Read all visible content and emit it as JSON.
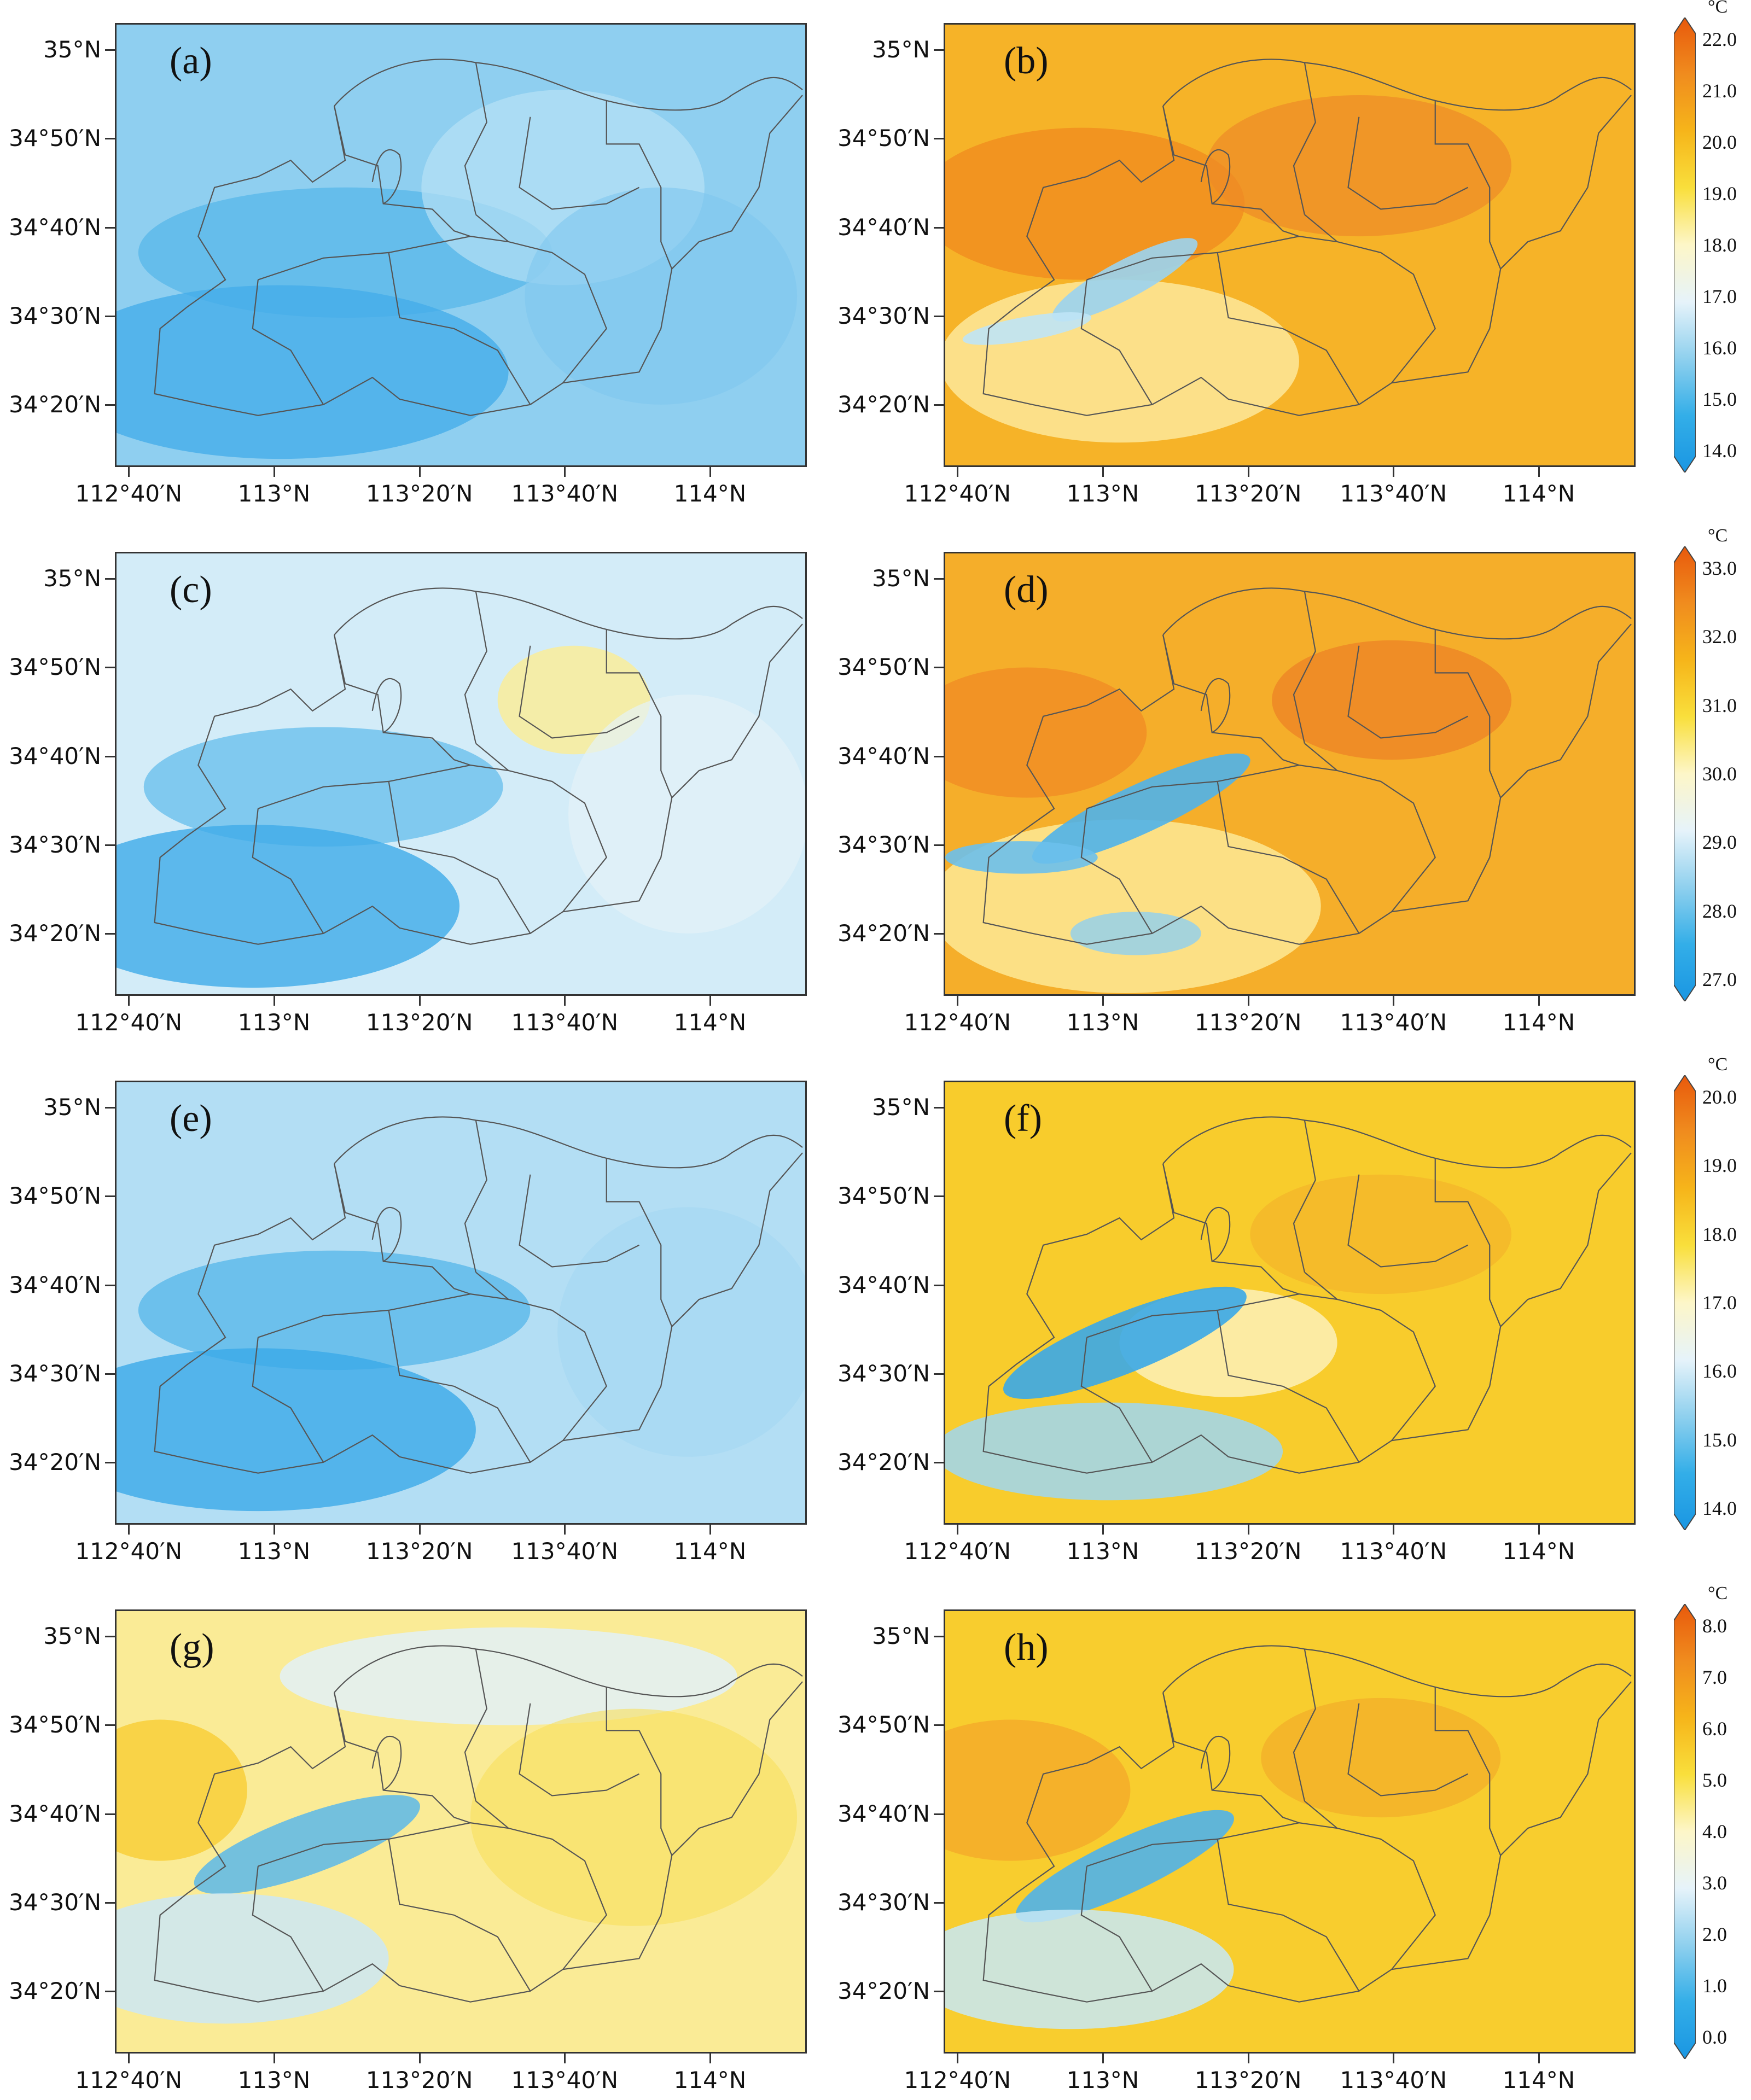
{
  "panels": [
    {
      "label": "(a)",
      "colormap": "cool_a"
    },
    {
      "label": "(b)",
      "colormap": "warm_b"
    },
    {
      "label": "(c)",
      "colormap": "cool_c"
    },
    {
      "label": "(d)",
      "colormap": "warm_d"
    },
    {
      "label": "(e)",
      "colormap": "cool_e"
    },
    {
      "label": "(f)",
      "colormap": "warm_f"
    },
    {
      "label": "(g)",
      "colormap": "mixed_g"
    },
    {
      "label": "(h)",
      "colormap": "warm_h"
    }
  ],
  "axes": {
    "lat_labels": [
      "35°N",
      "34°50′N",
      "34°40′N",
      "34°30′N",
      "34°20′N"
    ],
    "lon_labels": [
      "112°40′N",
      "113°N",
      "113°20′N",
      "113°40′N",
      "114°N"
    ]
  },
  "colorbars": [
    {
      "unit": "°C",
      "ticks": [
        "22.0",
        "21.0",
        "20.0",
        "19.0",
        "18.0",
        "17.0",
        "16.0",
        "15.0",
        "14.0"
      ]
    },
    {
      "unit": "°C",
      "ticks": [
        "33.0",
        "32.0",
        "31.0",
        "30.0",
        "29.0",
        "28.0",
        "27.0"
      ]
    },
    {
      "unit": "°C",
      "ticks": [
        "20.0",
        "19.0",
        "18.0",
        "17.0",
        "16.0",
        "15.0",
        "14.0"
      ]
    },
    {
      "unit": "°C",
      "ticks": [
        "8.0",
        "7.0",
        "6.0",
        "5.0",
        "4.0",
        "3.0",
        "2.0",
        "1.0",
        "0.0"
      ]
    }
  ],
  "colors": {
    "cbar_stops": [
      "#e8590c",
      "#f08c1e",
      "#f6b51a",
      "#f9df3c",
      "#fdf6c8",
      "#e6f3fa",
      "#8fd0ee",
      "#33aee8",
      "#1a96e2"
    ]
  }
}
